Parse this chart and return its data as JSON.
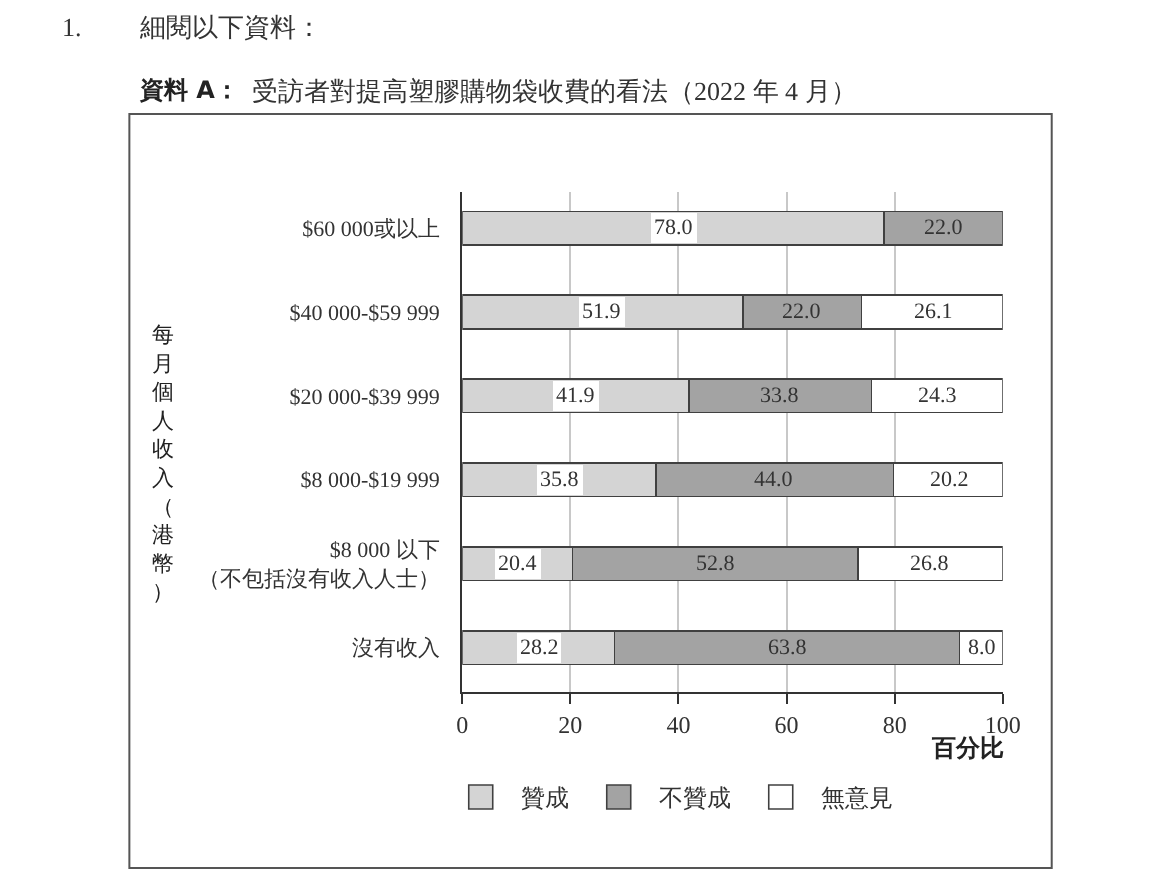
{
  "chart_data": {
    "type": "bar",
    "orientation": "horizontal",
    "stacked": true,
    "title": "資料 A：",
    "subtitle": "受訪者對提高塑膠購物袋收費的看法（2022 年 4 月）",
    "annotations": [
      "1.",
      "細閱以下資料："
    ],
    "xlabel": "百分比",
    "ylabel": "每月個人收入（港幣）",
    "categories": [
      "$60 000或以上",
      "$40 000-$59 999",
      "$20 000-$39 999",
      "$8 000-$19 999",
      "$8 000 以下（不包括沒有收入人士）",
      "沒有收入"
    ],
    "series": [
      {
        "name": "贊成",
        "color": "#d4d4d4",
        "values": [
          78.0,
          51.9,
          41.9,
          35.8,
          20.4,
          28.2
        ],
        "value_labels": [
          "78.0",
          "51.9",
          "41.9",
          "35.8",
          "20.4",
          "28.2"
        ]
      },
      {
        "name": "不贊成",
        "color": "#a3a3a3",
        "values": [
          22.0,
          22.0,
          33.8,
          44.0,
          52.8,
          63.8
        ],
        "value_labels": [
          "22.0",
          "22.0",
          "33.8",
          "44.0",
          "52.8",
          "63.8"
        ]
      },
      {
        "name": "無意見",
        "color": "#ffffff",
        "values": [
          null,
          26.1,
          24.3,
          20.2,
          26.8,
          8.0
        ],
        "value_labels": [
          null,
          "26.1",
          "24.3",
          "20.2",
          "26.8",
          "8.0"
        ]
      }
    ],
    "xlim": [
      0,
      100
    ],
    "xticks": [
      0,
      20,
      40,
      60,
      80,
      100
    ],
    "grid": "x",
    "legend": "bottom left"
  }
}
